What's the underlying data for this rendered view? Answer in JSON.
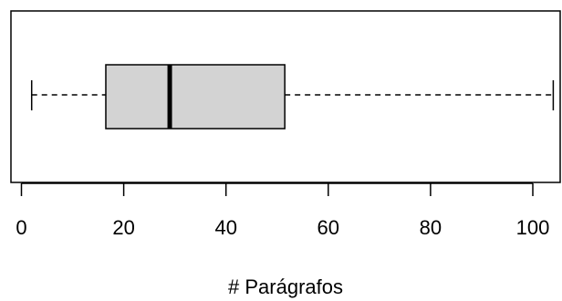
{
  "chart_data": {
    "type": "boxplot",
    "orientation": "horizontal",
    "xlabel": "# Parágrafos",
    "xlim": [
      0,
      105
    ],
    "x_ticks": [
      0,
      20,
      40,
      60,
      80,
      100
    ],
    "x_tick_labels": [
      "0",
      "20",
      "40",
      "60",
      "80",
      "100"
    ],
    "grid": false,
    "box": {
      "whisker_low": 2,
      "q1": 16.5,
      "median": 29,
      "q3": 51.5,
      "whisker_high": 104
    },
    "colors": {
      "box_fill": "#d3d3d3",
      "stroke": "#000000"
    }
  }
}
